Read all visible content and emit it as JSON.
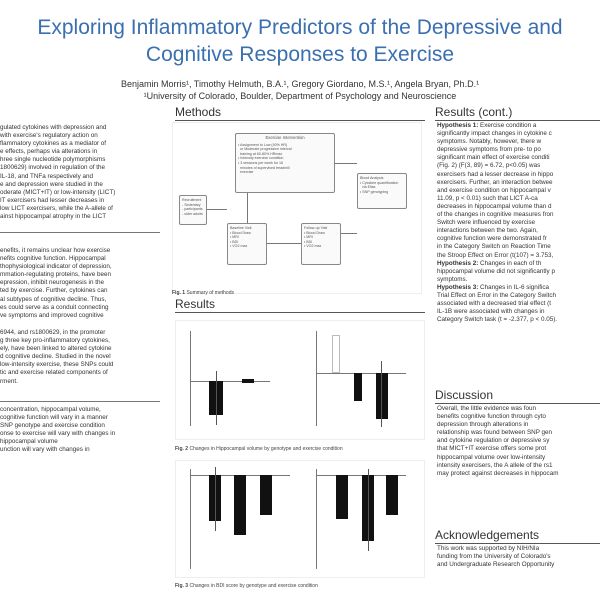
{
  "poster": {
    "title_line1": "Exploring Inflammatory Predictors of the Depressive and",
    "title_line2": "Cognitive Responses to Exercise",
    "authors": "Benjamin Morris¹, Timothy Helmuth, B.A.¹, Gregory Giordano, M.S.¹, Angela Bryan, Ph.D.¹",
    "affiliation": "¹University of Colorado, Boulder, Department of Psychology and Neuroscience"
  },
  "left": {
    "intro_lines": [
      "gulated cytokines with depression and",
      "with exercise's regulatory action on",
      "flammatory cytokines as a mediator of",
      "e effects, perhaps via alterations in",
      "hree single nucleotide polymorphisms",
      "1800629) involved in regulation of the",
      "IL-18, and TNFa respectively and",
      "e and depression were studied in the",
      "oderate (MICT+IT) or low-intensity (LICT)",
      "IT exercisers had lesser decreases in",
      "low LICT exercisers, while the A-allele of",
      "ainst hippocampal atrophy in the LICT"
    ],
    "background_lines": [
      "enefits, it remains unclear how exercise",
      "nefits cognitive function. Hippocampal",
      "thophysiological indicator of depression,",
      "mmation-regulating proteins, have been",
      "epression, inhibit neurogenesis in the",
      "ted by exercise. Further, cytokines can",
      "al subtypes of cognitive decline. Thus,",
      "es could serve as a conduit connecting",
      "ve symptoms and improved cognitive"
    ],
    "snp_lines": [
      "6944, and rs1800629, in the promoter",
      "g three key pro-inflammatory cytokines,",
      "ely, have been linked to altered cytokine",
      "d cognitive decline. Studied in the novel",
      "low-intensity exercise, these SNPs could",
      "tic and exercise related components of",
      "rment."
    ],
    "hyp_lines": [
      "concentration, hippocampal volume,",
      "cognitive function will vary in a manner",
      "SNP genotype and exercise condition",
      "onse to exercise will vary with changes in",
      "hippocampal volume",
      "unction will vary with changes in"
    ]
  },
  "middle": {
    "methods_heading": "Methods",
    "methods_boxes": {
      "recruitment": "Recruitment\n- Sedentary\n- participants\n- older adults",
      "intervention_title": "Exercise Intervention",
      "intervention_body": "• Assignment to Low (40% HR)\n  or Moderate progressive interval\n  training at 60-80% HRmax\n• Intensity exercise condition\n• 3 sessions per week for 16\n  minutes of supervised treadmill\n  exercise",
      "baseline": "Baseline Visit\n• Blood Draw\n• MRI\n• BDI\n• VO2 max",
      "followup": "Follow-up Visit\n• Blood Draw\n• MRI\n• BDI\n• VO2 max",
      "analysis": "Blood Analysis\n• Cytokine quantification\n  via Elisa\n• SNP genotyping"
    },
    "fig1_caption_bold": "Fig. 1",
    "fig1_caption": " Summary of methods",
    "results_heading": "Results",
    "fig2_caption_bold": "Fig. 2",
    "fig2_caption": " Changes in Hippocampal volume by genotype and exercise condition",
    "fig3_caption_bold": "Fig. 3",
    "fig3_caption": " Changes in BDI score by genotype and exercise condition"
  },
  "right": {
    "results_cont_heading": "Results (cont.)",
    "h1_label": "Hypothesis 1:",
    "h1_lines": [
      " Exercise condition a",
      "significantly impact changes in cytokine c",
      "symptoms. Notably, however, there w",
      "depressive symptoms from pre- to po",
      "significant main effect of exercise conditi",
      "(Fig. 2) (F(3, 89) = 6.72, p<0.05) was",
      "exercisers had a lesser decrease in hippo",
      "exercisers. Further, an interaction betwee",
      "and exercise condition on hippocampal v",
      "11.09, p < 0.01) such that LICT A-ca",
      "decreases in hippocampal volume than d",
      "of the changes in cognitive measures fron",
      "Switch were influenced by exercise",
      "interactions between the two. Again,",
      "cognitive function were demonstrated fr",
      "in the Category Switch on Reaction Time",
      "the Stroop Effect on Error (t(107) = 3.753,"
    ],
    "h2_label": "Hypothesis 2:",
    "h2_lines": [
      " Changes in each of th",
      "hippocampal volume did not significantly p",
      "symptoms."
    ],
    "h3_label": "Hypothesis 3:",
    "h3_lines": [
      " Changes in IL-6 significa",
      "Trial Effect on Error in the Category Switch",
      "associated with a decreased trial effect (t",
      "IL-1B were associated with changes in",
      "Category Switch task (t = -2.377, p < 0.05)."
    ],
    "discussion_heading": "Discussion",
    "discussion_lines": [
      "Overall, the little evidence was foun",
      "benefits cognitive function through cyto",
      "depression through alterations in",
      "relationship was found between SNP gen",
      "and cytokine regulation or depressive sy",
      "that MICT+IT exercise offers some prot",
      "hippocampal volume over low-intensity",
      "intensity exercisers, the A allele of the rs1",
      "may protect against decreases in hippocam"
    ],
    "ack_heading": "Acknowledgements",
    "ack_lines": [
      "This work was supported by NIH/NIa",
      "funding from the University of Colorado's",
      "and Undergraduate Research Opportunity"
    ]
  }
}
